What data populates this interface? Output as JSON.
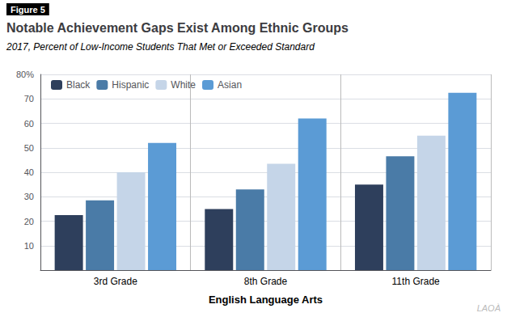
{
  "chart_data": {
    "type": "bar",
    "title": "Notable Achievement Gaps Exist Among Ethnic Groups",
    "subtitle": "2017, Percent of Low-Income Students That Met or Exceeded Standard",
    "annotations": [
      "Figure 5",
      "LAOÀ"
    ],
    "xlabel": "English Language Arts",
    "categories": [
      "3rd Grade",
      "8th Grade",
      "11th Grade"
    ],
    "series": [
      {
        "name": "Black",
        "color": "#2E3F5C",
        "values": [
          22.5,
          25.0,
          35.0
        ]
      },
      {
        "name": "Hispanic",
        "color": "#4A7BA7",
        "values": [
          28.5,
          33.0,
          46.5
        ]
      },
      {
        "name": "White",
        "color": "#C5D5E8",
        "values": [
          40.0,
          43.5,
          55.0
        ]
      },
      {
        "name": "Asian",
        "color": "#5B9BD5",
        "values": [
          52.0,
          62.0,
          72.5
        ]
      }
    ],
    "ylim": [
      0,
      80
    ],
    "yticks": [
      10,
      20,
      30,
      40,
      50,
      60,
      70,
      {
        "value": 80,
        "label": "80%"
      }
    ],
    "grid": true,
    "legend": "upper left"
  }
}
